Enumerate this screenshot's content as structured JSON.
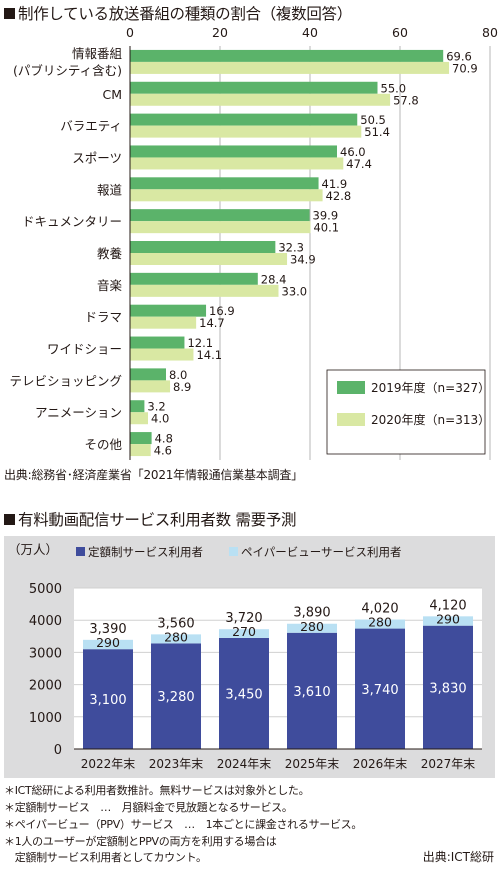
{
  "chart1": {
    "title": "制作している放送番組の種類の割合（複数回答）",
    "unit": "(%)",
    "source": "出典:総務省･経済産業省「2021年情報通信業基本調査」",
    "chart_data": {
      "type": "bar",
      "orientation": "horizontal",
      "title": "制作している放送番組の種類の割合（複数回答）",
      "unit": "%",
      "xlim": [
        0,
        80
      ],
      "ticks": [
        0,
        20,
        40,
        60,
        80
      ],
      "grid": true,
      "legend_position": "bottom-right",
      "categories": [
        [
          "情報番組",
          "(パブリシティ含む)"
        ],
        [
          "CM"
        ],
        [
          "バラエティ"
        ],
        [
          "スポーツ"
        ],
        [
          "報道"
        ],
        [
          "ドキュメンタリー"
        ],
        [
          "教養"
        ],
        [
          "音楽"
        ],
        [
          "ドラマ"
        ],
        [
          "ワイドショー"
        ],
        [
          "テレビショッピング"
        ],
        [
          "アニメーション"
        ],
        [
          "その他"
        ]
      ],
      "series": [
        {
          "name": "2019年度（n=327）",
          "color": "#5bb36a",
          "values": [
            69.6,
            55.0,
            50.5,
            46.0,
            41.9,
            39.9,
            32.3,
            28.4,
            16.9,
            12.1,
            8.0,
            3.2,
            4.8
          ]
        },
        {
          "name": "2020年度（n=313）",
          "color": "#d9e8a3",
          "values": [
            70.9,
            57.8,
            51.4,
            47.4,
            42.8,
            40.1,
            34.9,
            33.0,
            14.7,
            14.1,
            8.9,
            4.0,
            4.6
          ]
        }
      ]
    }
  },
  "chart2": {
    "title": "有料動画配信サービス利用者数 需要予測",
    "unit": "（万人）",
    "source": "出典:ICT総研",
    "notes": [
      "＊ICT総研による利用者数推計。無料サービスは対象外とした。",
      "＊定額制サービス　…　月額料金で見放題となるサービス。",
      "＊ペイパービュー（PPV）サービス　…　1本ごとに課金されるサービス。",
      "＊1人のユーザーが定額制とPPVの両方を利用する場合は",
      "　定額制サービス利用者としてカウント。"
    ],
    "chart_data": {
      "type": "bar",
      "stacked": true,
      "title": "有料動画配信サービス利用者数 需要予測",
      "ylabel": "（万人）",
      "ylim": [
        0,
        5000
      ],
      "yticks": [
        0,
        1000,
        2000,
        3000,
        4000,
        5000
      ],
      "grid": true,
      "legend_position": "top",
      "categories": [
        "2022年末",
        "2023年末",
        "2024年末",
        "2025年末",
        "2026年末",
        "2027年末"
      ],
      "series": [
        {
          "name": "定額制サービス利用者",
          "color": "#3f4c9c",
          "values": [
            3100,
            3280,
            3450,
            3610,
            3740,
            3830
          ]
        },
        {
          "name": "ペイパービューサービス利用者",
          "color": "#b9e0f3",
          "values": [
            290,
            280,
            270,
            280,
            280,
            290
          ]
        }
      ],
      "totals": [
        3390,
        3560,
        3720,
        3890,
        4020,
        4120
      ]
    }
  }
}
